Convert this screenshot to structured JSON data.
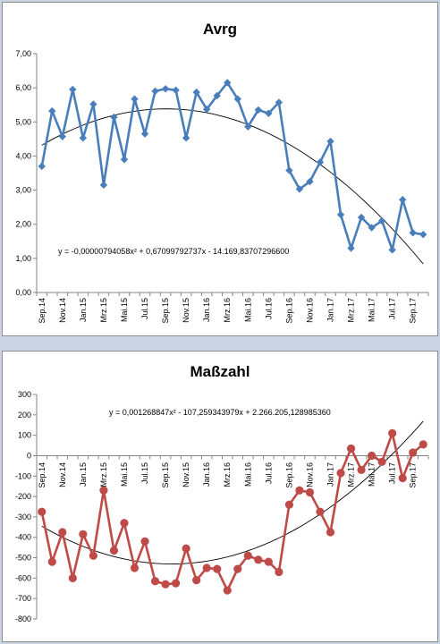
{
  "chart_data": [
    {
      "type": "line",
      "title": "Avrg",
      "categories": [
        "Sep.14",
        "Okt.14",
        "Nov.14",
        "Dez.14",
        "Jan.15",
        "Feb.15",
        "Mrz.15",
        "Apr.15",
        "Mai.15",
        "Jun.15",
        "Jul.15",
        "Aug.15",
        "Sep.15",
        "Okt.15",
        "Nov.15",
        "Dez.15",
        "Jan.16",
        "Feb.16",
        "Mrz.16",
        "Apr.16",
        "Mai.16",
        "Jun.16",
        "Jul.16",
        "Aug.16",
        "Sep.16",
        "Okt.16",
        "Nov.16",
        "Dez.16",
        "Jan.17",
        "Feb.17",
        "Mrz.17",
        "Apr.17",
        "Mai.17",
        "Jun.17",
        "Jul.17",
        "Aug.17",
        "Sep.17",
        "Okt.17"
      ],
      "x_tick_labels": [
        "Sep.14",
        "Nov.14",
        "Jan.15",
        "Mrz.15",
        "Mai.15",
        "Jul.15",
        "Sep.15",
        "Nov.15",
        "Jan.16",
        "Mrz.16",
        "Mai.16",
        "Jul.16",
        "Sep.16",
        "Nov.16",
        "Jan.17",
        "Mrz.17",
        "Mai.17",
        "Jul.17",
        "Sep.17"
      ],
      "series": [
        {
          "values": [
            3.7,
            5.32,
            4.57,
            5.95,
            4.53,
            5.52,
            3.15,
            5.14,
            3.9,
            5.67,
            4.65,
            5.9,
            5.97,
            5.93,
            4.53,
            5.87,
            5.37,
            5.77,
            6.15,
            5.67,
            4.86,
            5.35,
            5.25,
            5.57,
            3.58,
            3.03,
            3.25,
            3.82,
            4.43,
            2.28,
            1.3,
            2.2,
            1.9,
            2.1,
            1.25,
            2.72,
            1.75,
            1.7
          ],
          "color": "#4a7ebb"
        }
      ],
      "trendline": {
        "type": "polynomial",
        "order": 2,
        "equation": "y = -0,00000794058x²  + 0,67099792737x   - 14.169,83707296600",
        "color": "#000000"
      },
      "y_tick_labels": [
        "0,00",
        "1,00",
        "2,00",
        "3,00",
        "4,00",
        "5,00",
        "6,00",
        "7,00"
      ],
      "ylim": [
        0,
        7
      ],
      "grid": false,
      "legend": "none"
    },
    {
      "type": "line",
      "title": "Maßzahl",
      "categories": [
        "Sep.14",
        "Okt.14",
        "Nov.14",
        "Dez.14",
        "Jan.15",
        "Feb.15",
        "Mrz.15",
        "Apr.15",
        "Mai.15",
        "Jun.15",
        "Jul.15",
        "Aug.15",
        "Sep.15",
        "Okt.15",
        "Nov.15",
        "Dez.15",
        "Jan.16",
        "Feb.16",
        "Mrz.16",
        "Apr.16",
        "Mai.16",
        "Jun.16",
        "Jul.16",
        "Aug.16",
        "Sep.16",
        "Okt.16",
        "Nov.16",
        "Dez.16",
        "Jan.17",
        "Feb.17",
        "Mrz.17",
        "Apr.17",
        "Mai.17",
        "Jun.17",
        "Jul.17",
        "Aug.17",
        "Sep.17",
        "Okt.17"
      ],
      "x_tick_labels": [
        "Sep.14",
        "Nov.14",
        "Jan.15",
        "Mrz.15",
        "Mai.15",
        "Jul.15",
        "Sep.15",
        "Nov.15",
        "Jan.16",
        "Mrz.16",
        "Mai.16",
        "Jul.16",
        "Sep.16",
        "Nov.16",
        "Jan.17",
        "Mrz.17",
        "Mai.17",
        "Jul.17",
        "Sep.17"
      ],
      "series": [
        {
          "values": [
            -275,
            -520,
            -375,
            -600,
            -385,
            -490,
            -170,
            -465,
            -330,
            -550,
            -420,
            -615,
            -630,
            -625,
            -455,
            -610,
            -550,
            -555,
            -660,
            -555,
            -490,
            -510,
            -520,
            -570,
            -240,
            -170,
            -180,
            -275,
            -375,
            -85,
            35,
            -70,
            0,
            -30,
            110,
            -110,
            15,
            55
          ],
          "color": "#be4b48"
        }
      ],
      "trendline": {
        "type": "polynomial",
        "order": 2,
        "equation": "y = 0,001268847x²  - 107,259343979x  + 2.266.205,128985360",
        "color": "#000000"
      },
      "y_tick_labels": [
        "-800",
        "-700",
        "-600",
        "-500",
        "-400",
        "-300",
        "-200",
        "-100",
        "0",
        "100",
        "200",
        "300"
      ],
      "ylim": [
        -800,
        300
      ],
      "grid": false,
      "legend": "none"
    }
  ]
}
